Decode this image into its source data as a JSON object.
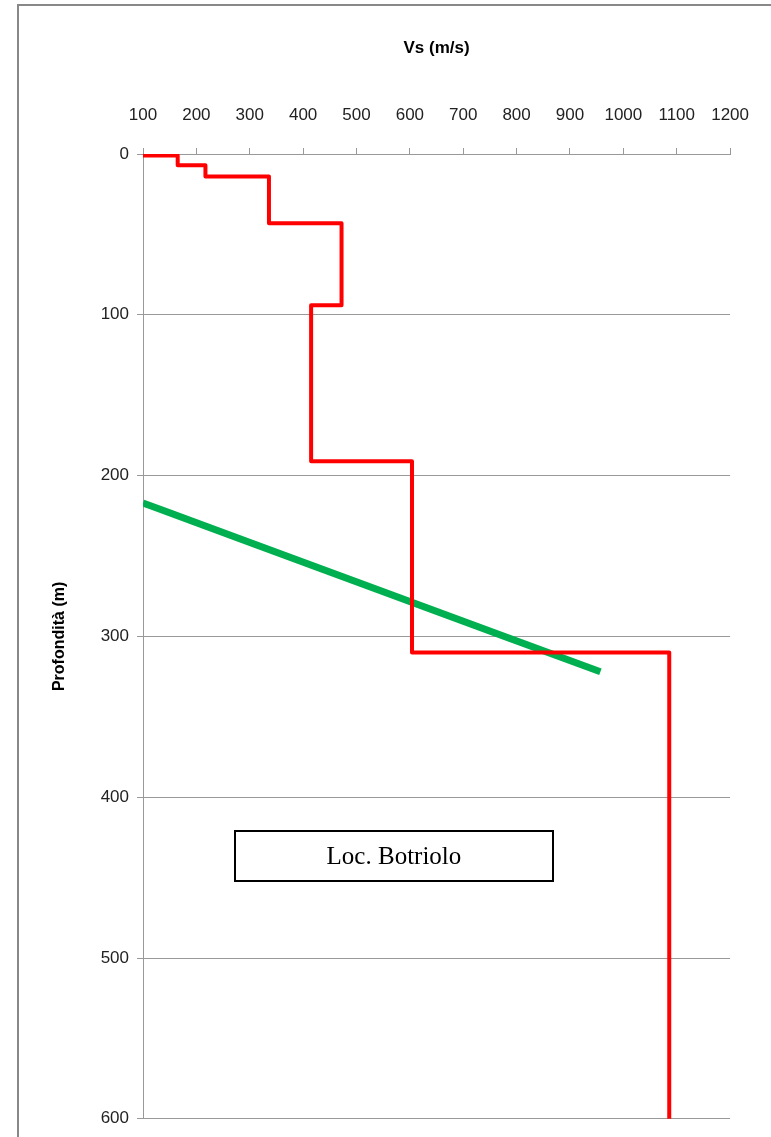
{
  "chart_data": {
    "type": "line",
    "xlabel": "Vs (m/s)",
    "ylabel": "Profondità (m)",
    "xlim": [
      100,
      1200
    ],
    "xticks": [
      100,
      200,
      300,
      400,
      500,
      600,
      700,
      800,
      900,
      1000,
      1100,
      1200
    ],
    "ylim": [
      600,
      0
    ],
    "yticks": [
      0,
      100,
      200,
      300,
      400,
      500,
      600
    ],
    "grid": "y",
    "legend": false,
    "marker": "none",
    "line_style": "solid",
    "series": [
      {
        "color": "#ff0000",
        "x": [
          100,
          165,
          165,
          217,
          217,
          336,
          336,
          472,
          472,
          415,
          415,
          604,
          604,
          1086,
          1086
        ],
        "values": [
          1,
          1,
          7,
          7,
          14,
          14,
          43,
          43,
          94,
          94,
          191,
          191,
          310,
          310,
          600
        ]
      },
      {
        "color": "#00b050",
        "x": [
          100,
          957
        ],
        "values": [
          217,
          322
        ]
      }
    ],
    "annotations": [
      "Loc. Botriolo"
    ]
  }
}
